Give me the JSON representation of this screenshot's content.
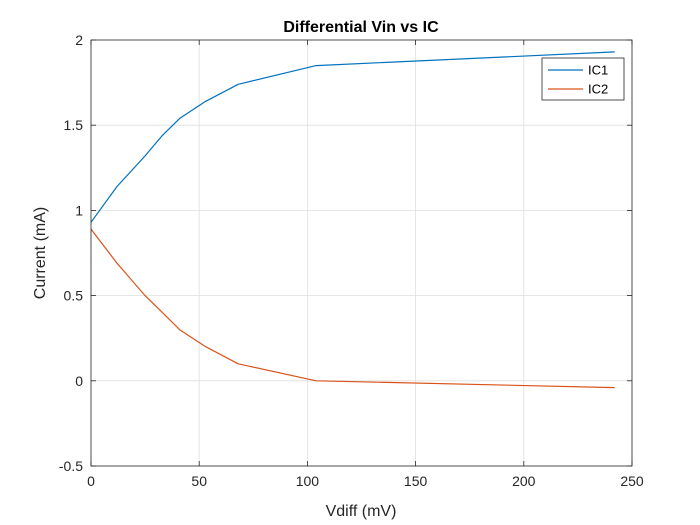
{
  "chart_data": {
    "type": "line",
    "title": "Differential Vin vs IC",
    "xlabel": "Vdiff (mV)",
    "ylabel": "Current (mA)",
    "xlim": [
      0,
      250
    ],
    "ylim": [
      -0.5,
      2
    ],
    "xticks": [
      0,
      50,
      100,
      150,
      200,
      250
    ],
    "yticks": [
      -0.5,
      0,
      0.5,
      1,
      1.5,
      2
    ],
    "xtick_labels": [
      "0",
      "50",
      "100",
      "150",
      "200",
      "250"
    ],
    "ytick_labels": [
      "-0.5",
      "0",
      "0.5",
      "1",
      "1.5",
      "2"
    ],
    "grid": true,
    "legend_position": "top-right",
    "series": [
      {
        "name": "IC1",
        "color": "#0072BD",
        "x": [
          0,
          12,
          25,
          33,
          41,
          53,
          68,
          104,
          242
        ],
        "y": [
          0.93,
          1.14,
          1.32,
          1.44,
          1.54,
          1.64,
          1.74,
          1.85,
          1.93
        ]
      },
      {
        "name": "IC2",
        "color": "#D95319",
        "x": [
          0,
          12,
          25,
          33,
          41,
          53,
          68,
          104,
          242
        ],
        "y": [
          0.89,
          0.69,
          0.5,
          0.4,
          0.3,
          0.2,
          0.1,
          0.0,
          -0.04
        ]
      }
    ]
  }
}
